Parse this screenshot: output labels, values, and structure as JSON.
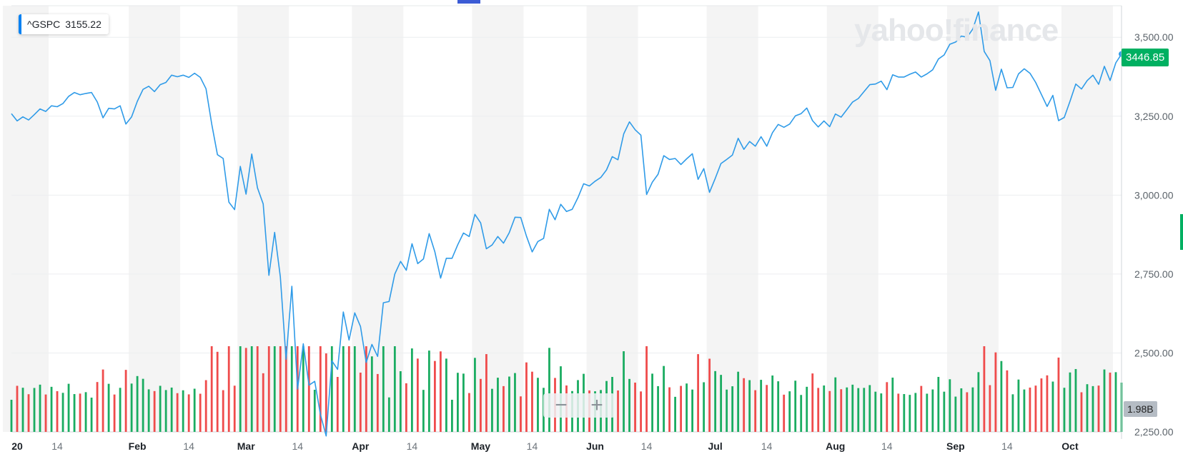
{
  "legend": {
    "symbol": "^GSPC",
    "value": "3155.22"
  },
  "watermark": "yahoo!finance",
  "last_price_label": "3446.85",
  "volume_label": "1.98B",
  "zoom": {
    "minus": "−",
    "plus": "+"
  },
  "colors": {
    "line": "#2f9be8",
    "up": "#1aac61",
    "down": "#ef4b4b",
    "price_badge": "#00b061",
    "band": "#f4f4f4"
  },
  "chart_data": {
    "type": "line",
    "ylim": [
      2250,
      3600
    ],
    "yticks": [
      3500,
      3250,
      3000,
      2750,
      2500,
      2250
    ],
    "ytick_labels": [
      "3,500.00",
      "3,250.00",
      "3,000.00",
      "2,750.00",
      "2,500.00",
      "2,250.00"
    ],
    "xtick_labels": [
      "20",
      "14",
      "Feb",
      "14",
      "Mar",
      "14",
      "Apr",
      "14",
      "May",
      "14",
      "Jun",
      "14",
      "Jul",
      "14",
      "Aug",
      "14",
      "Sep",
      "14",
      "Oct"
    ],
    "xtick_index": [
      0,
      8,
      22,
      31,
      41,
      50,
      61,
      70,
      82,
      91,
      102,
      111,
      123,
      132,
      144,
      153,
      165,
      174,
      185
    ],
    "xtick_month": [
      true,
      false,
      true,
      false,
      true,
      false,
      true,
      false,
      true,
      false,
      true,
      false,
      true,
      false,
      true,
      false,
      true,
      false,
      true
    ],
    "close": [
      3258,
      3235,
      3248,
      3238,
      3255,
      3273,
      3265,
      3283,
      3280,
      3290,
      3313,
      3325,
      3318,
      3322,
      3325,
      3295,
      3245,
      3275,
      3273,
      3283,
      3225,
      3248,
      3297,
      3335,
      3345,
      3328,
      3350,
      3357,
      3380,
      3375,
      3380,
      3373,
      3386,
      3373,
      3337,
      3225,
      3128,
      3116,
      2978,
      2954,
      3091,
      3003,
      3130,
      3023,
      2972,
      2746,
      2882,
      2741,
      2480,
      2711,
      2386,
      2529,
      2398,
      2410,
      2305,
      2237,
      2475,
      2448,
      2630,
      2541,
      2627,
      2584,
      2470,
      2527,
      2489,
      2659,
      2663,
      2750,
      2790,
      2762,
      2846,
      2783,
      2798,
      2878,
      2820,
      2737,
      2800,
      2800,
      2843,
      2880,
      2869,
      2939,
      2912,
      2830,
      2842,
      2869,
      2848,
      2881,
      2930,
      2929,
      2870,
      2820,
      2853,
      2863,
      2955,
      2922,
      2971,
      2948,
      2955,
      2992,
      3036,
      3029,
      3044,
      3056,
      3080,
      3122,
      3112,
      3194,
      3232,
      3207,
      3190,
      3002,
      3041,
      3066,
      3125,
      3113,
      3116,
      3097,
      3115,
      3131,
      3050,
      3084,
      3009,
      3053,
      3100,
      3113,
      3127,
      3180,
      3145,
      3170,
      3155,
      3185,
      3155,
      3198,
      3224,
      3215,
      3225,
      3251,
      3258,
      3276,
      3236,
      3216,
      3235,
      3217,
      3257,
      3247,
      3271,
      3295,
      3306,
      3328,
      3350,
      3352,
      3361,
      3334,
      3381,
      3374,
      3374,
      3383,
      3390,
      3374,
      3384,
      3397,
      3431,
      3444,
      3478,
      3485,
      3504,
      3500,
      3526,
      3580,
      3455,
      3426,
      3332,
      3399,
      3340,
      3341,
      3384,
      3400,
      3386,
      3357,
      3319,
      3281,
      3316,
      3236,
      3246,
      3298,
      3352,
      3336,
      3363,
      3380,
      3351,
      3408,
      3363,
      3419,
      3447
    ]
  }
}
